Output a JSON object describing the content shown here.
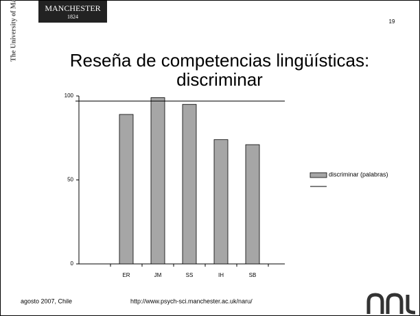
{
  "slide": {
    "logo": "MANCHESTER",
    "logo_year": "1824",
    "university": "The University of Manchester",
    "page_number": "19",
    "title_line1": "Reseña de competencias lingüísticas:",
    "title_line2": "discriminar",
    "footer_left": "agosto 2007, Chile",
    "footer_url": "http://www.psych-sci.manchester.ac.uk/naru/"
  },
  "chart_data": {
    "type": "bar",
    "categories": [
      "ER",
      "JM",
      "SS",
      "IH",
      "SB"
    ],
    "series": [
      {
        "name": "discriminar (palabras)",
        "color": "#a6a6a6",
        "values": [
          89,
          99,
          95,
          74,
          71
        ]
      }
    ],
    "reference_line": 97,
    "ylim": [
      0,
      100
    ],
    "yticks": [
      0,
      50,
      100
    ],
    "legend": "right"
  }
}
